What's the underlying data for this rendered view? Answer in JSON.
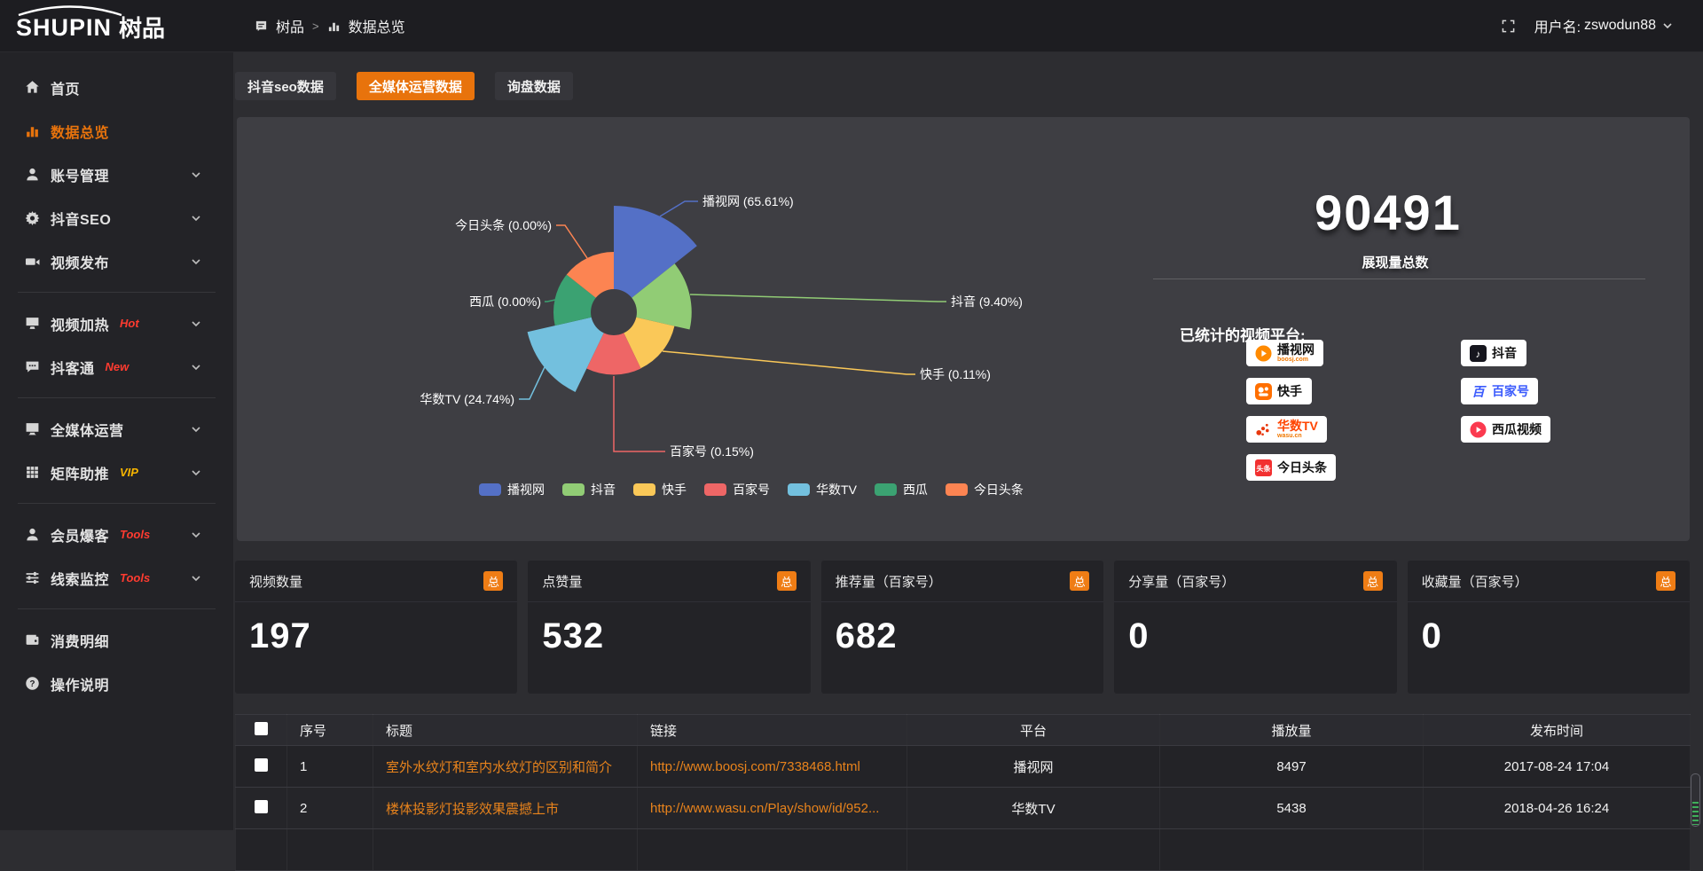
{
  "app": {
    "accent_orange": "#e8730c"
  },
  "header": {
    "logo_main": "SHUPIN",
    "logo_cn": "树品",
    "breadcrumb": {
      "root": "树品",
      "sep": ">",
      "current": "数据总览"
    },
    "username_label": "用户名:",
    "username": "zswodun88"
  },
  "sidebar": {
    "items": [
      {
        "label": "首页",
        "icon": "home-icon",
        "active": false,
        "chevron": false
      },
      {
        "label": "数据总览",
        "icon": "bar-chart-icon",
        "active": true,
        "chevron": false
      },
      {
        "label": "账号管理",
        "icon": "user-icon",
        "chevron": true
      },
      {
        "label": "抖音SEO",
        "icon": "gear-icon",
        "chevron": true
      },
      {
        "label": "视频发布",
        "icon": "video-upload-icon",
        "chevron": true,
        "divider_after": true
      },
      {
        "label": "视频加热",
        "icon": "monitor-hot-icon",
        "tag": "Hot",
        "tag_color": "#ff3b30",
        "chevron": true
      },
      {
        "label": "抖客通",
        "icon": "chat-icon",
        "tag": "New",
        "tag_color": "#ff3b30",
        "chevron": true,
        "divider_after": true
      },
      {
        "label": "全媒体运营",
        "icon": "screen-icon",
        "chevron": true
      },
      {
        "label": "矩阵助推",
        "icon": "grid-icon",
        "tag": "VIP",
        "tag_color": "#f7b500",
        "chevron": true,
        "divider_after": true
      },
      {
        "label": "会员爆客",
        "icon": "member-icon",
        "tag": "Tools",
        "tag_color": "#ff3b30",
        "chevron": true
      },
      {
        "label": "线索监控",
        "icon": "sliders-icon",
        "tag": "Tools",
        "tag_color": "#ff3b30",
        "chevron": true,
        "divider_after": true
      },
      {
        "label": "消费明细",
        "icon": "wallet-icon",
        "chevron": false
      },
      {
        "label": "操作说明",
        "icon": "question-icon",
        "chevron": false
      }
    ]
  },
  "tabs": [
    {
      "label": "抖音seo数据",
      "active": false
    },
    {
      "label": "全媒体运营数据",
      "active": true
    },
    {
      "label": "询盘数据",
      "active": false
    }
  ],
  "chart_data": {
    "type": "pie",
    "variant": "nightingale-rose",
    "donut": true,
    "legend_position": "bottom-center",
    "series": [
      {
        "name": "播视网",
        "percent": 65.61,
        "label": "播视网 (65.61%)",
        "color": "#5470c6"
      },
      {
        "name": "抖音",
        "percent": 9.4,
        "label": "抖音 (9.40%)",
        "color": "#91cc75"
      },
      {
        "name": "快手",
        "percent": 0.11,
        "label": "快手 (0.11%)",
        "color": "#fac858"
      },
      {
        "name": "百家号",
        "percent": 0.15,
        "label": "百家号 (0.15%)",
        "color": "#ee6666"
      },
      {
        "name": "华数TV",
        "percent": 24.74,
        "label": "华数TV (24.74%)",
        "color": "#73c0de"
      },
      {
        "name": "西瓜",
        "percent": 0.0,
        "label": "西瓜 (0.00%)",
        "color": "#3ba272"
      },
      {
        "name": "今日头条",
        "percent": 0.0,
        "label": "今日头条 (0.00%)",
        "color": "#fc8452"
      }
    ]
  },
  "summary": {
    "total_value": "90491",
    "total_label": "展现量总数",
    "platforms_title": "已统计的视频平台:",
    "platform_badges": {
      "left": [
        {
          "name": "播视网",
          "sub": "boosj.com",
          "logo": "boosj"
        },
        {
          "name": "快手",
          "logo": "kuaishou"
        },
        {
          "name": "华数TV",
          "sub": "wasu.cn",
          "logo": "wasu"
        },
        {
          "name": "今日头条",
          "logo": "toutiao"
        }
      ],
      "right": [
        {
          "name": "抖音",
          "logo": "douyin"
        },
        {
          "name": "百家号",
          "logo": "baijiahao"
        },
        {
          "name": "西瓜视频",
          "logo": "xigua"
        }
      ]
    }
  },
  "stat_cards": [
    {
      "label": "视频数量",
      "badge": "总",
      "value": "197"
    },
    {
      "label": "点赞量",
      "badge": "总",
      "value": "532"
    },
    {
      "label": "推荐量（百家号）",
      "badge": "总",
      "value": "682"
    },
    {
      "label": "分享量（百家号）",
      "badge": "总",
      "value": "0"
    },
    {
      "label": "收藏量（百家号）",
      "badge": "总",
      "value": "0"
    }
  ],
  "table": {
    "columns": [
      "序号",
      "标题",
      "链接",
      "平台",
      "播放量",
      "发布时间"
    ],
    "rows": [
      {
        "index": "1",
        "title": "室外水纹灯和室内水纹灯的区别和简介",
        "link": "http://www.boosj.com/7338468.html",
        "platform": "播视网",
        "plays": "8497",
        "time": "2017-08-24 17:04"
      },
      {
        "index": "2",
        "title": "楼体投影灯投影效果震撼上市",
        "link": "http://www.wasu.cn/Play/show/id/952...",
        "platform": "华数TV",
        "plays": "5438",
        "time": "2018-04-26 16:24"
      },
      {
        "index": "",
        "title": "",
        "link": "",
        "platform": "",
        "plays": "",
        "time": ""
      }
    ]
  }
}
